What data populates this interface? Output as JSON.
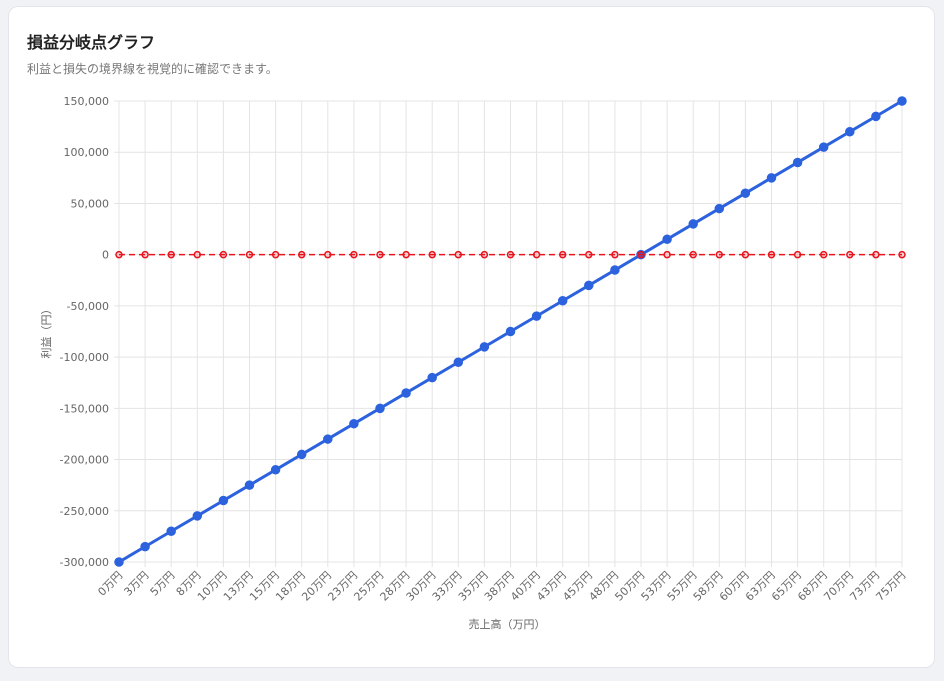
{
  "chart_data": {
    "type": "line",
    "title": "損益分岐点グラフ",
    "subtitle": "利益と損失の境界線を視覚的に確認できます。",
    "x_label": "売上高（万円）",
    "y_label": "利益（円）",
    "categories": [
      "0万円",
      "3万円",
      "5万円",
      "8万円",
      "10万円",
      "13万円",
      "15万円",
      "18万円",
      "20万円",
      "23万円",
      "25万円",
      "28万円",
      "30万円",
      "33万円",
      "35万円",
      "38万円",
      "40万円",
      "43万円",
      "45万円",
      "48万円",
      "50万円",
      "53万円",
      "55万円",
      "58万円",
      "60万円",
      "63万円",
      "65万円",
      "68万円",
      "70万円",
      "73万円",
      "75万円"
    ],
    "series": [
      {
        "color": "#2c62de",
        "dashed": false,
        "values": [
          -300000,
          -285000,
          -270000,
          -255000,
          -240000,
          -225000,
          -210000,
          -195000,
          -180000,
          -165000,
          -150000,
          -135000,
          -120000,
          -105000,
          -90000,
          -75000,
          -60000,
          -45000,
          -30000,
          -15000,
          0,
          15000,
          30000,
          45000,
          60000,
          75000,
          90000,
          105000,
          120000,
          135000,
          150000
        ]
      },
      {
        "color": "#e8141e",
        "dashed": true,
        "values": [
          0,
          0,
          0,
          0,
          0,
          0,
          0,
          0,
          0,
          0,
          0,
          0,
          0,
          0,
          0,
          0,
          0,
          0,
          0,
          0,
          0,
          0,
          0,
          0,
          0,
          0,
          0,
          0,
          0,
          0,
          0
        ]
      }
    ],
    "ylim": [
      -300000,
      150000
    ],
    "yticks": [
      {
        "value": 150000,
        "label": "150,000"
      },
      {
        "value": 100000,
        "label": "100,000"
      },
      {
        "value": 50000,
        "label": "50,000"
      },
      0,
      {
        "value": -50000,
        "label": "-50,000"
      },
      {
        "value": -100000,
        "label": "-100,000"
      },
      {
        "value": -150000,
        "label": "-150,000"
      },
      {
        "value": -200000,
        "label": "-200,000"
      },
      {
        "value": -250000,
        "label": "-250,000"
      },
      {
        "value": -300000,
        "label": "-300,000"
      }
    ],
    "grid": true
  }
}
